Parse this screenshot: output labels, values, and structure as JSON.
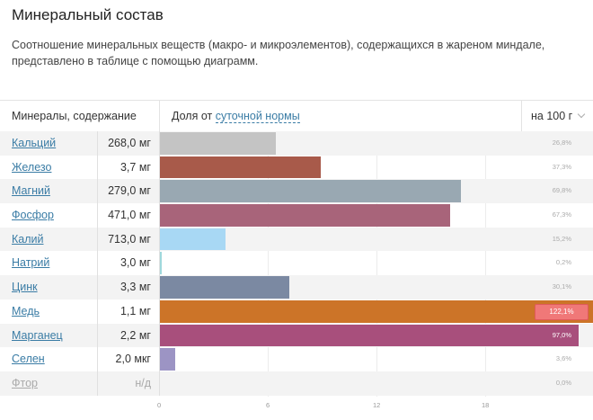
{
  "title": "Минеральный состав",
  "description": "Соотношение минеральных веществ (макро- и микроэлементов), содержащихся в жареном миндале, представлено в таблице с помощью диаграмм.",
  "header": {
    "minerals_label": "Минералы, содержание",
    "share_prefix": "Доля от ",
    "share_link": "суточной нормы",
    "per_label": "на 100 г"
  },
  "rows": [
    {
      "name": "Кальций",
      "amount": "268,0 мг",
      "percent": 26.8,
      "percent_label": "26,8%",
      "color": "#c4c4c4"
    },
    {
      "name": "Железо",
      "amount": "3,7 мг",
      "percent": 37.3,
      "percent_label": "37,3%",
      "color": "#a85a4a"
    },
    {
      "name": "Магний",
      "amount": "279,0 мг",
      "percent": 69.8,
      "percent_label": "69,8%",
      "color": "#99a8b2"
    },
    {
      "name": "Фосфор",
      "amount": "471,0 мг",
      "percent": 67.3,
      "percent_label": "67,3%",
      "color": "#a8647a"
    },
    {
      "name": "Калий",
      "amount": "713,0 мг",
      "percent": 15.2,
      "percent_label": "15,2%",
      "color": "#a8d8f4"
    },
    {
      "name": "Натрий",
      "amount": "3,0 мг",
      "percent": 0.2,
      "percent_label": "0,2%",
      "color": "#9fd8dc"
    },
    {
      "name": "Цинк",
      "amount": "3,3 мг",
      "percent": 30.1,
      "percent_label": "30,1%",
      "color": "#7b89a2"
    },
    {
      "name": "Медь",
      "amount": "1,1 мг",
      "percent": 122.1,
      "percent_label": "122,1%",
      "color": "#cc7428",
      "over": true
    },
    {
      "name": "Марганец",
      "amount": "2,2 мг",
      "percent": 97.0,
      "percent_label": "97,0%",
      "color": "#a84f7c"
    },
    {
      "name": "Селен",
      "amount": "2,0 мкг",
      "percent": 3.6,
      "percent_label": "3,6%",
      "color": "#9c94c4"
    },
    {
      "name": "Фтор",
      "amount": "н/д",
      "percent": 0.0,
      "percent_label": "0,0%",
      "color": "#cccccc",
      "dim": true
    }
  ],
  "axis_ticks": [
    "0",
    "6",
    "12",
    "18"
  ]
}
